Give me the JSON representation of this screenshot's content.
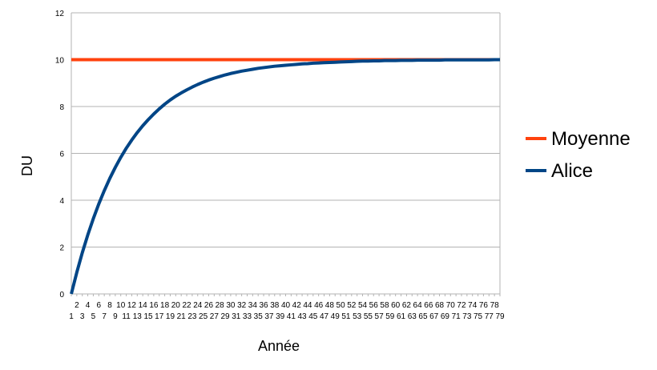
{
  "chart_data": {
    "type": "line",
    "xlabel": "Année",
    "ylabel": "DU",
    "x": [
      1,
      2,
      3,
      4,
      5,
      6,
      7,
      8,
      9,
      10,
      11,
      12,
      13,
      14,
      15,
      16,
      17,
      18,
      19,
      20,
      21,
      22,
      23,
      24,
      25,
      26,
      27,
      28,
      29,
      30,
      31,
      32,
      33,
      34,
      35,
      36,
      37,
      38,
      39,
      40,
      41,
      42,
      43,
      44,
      45,
      46,
      47,
      48,
      49,
      50,
      51,
      52,
      53,
      54,
      55,
      56,
      57,
      58,
      59,
      60,
      61,
      62,
      63,
      64,
      65,
      66,
      67,
      68,
      69,
      70,
      71,
      72,
      73,
      74,
      75,
      76,
      77,
      78,
      79
    ],
    "ylim": [
      0,
      12
    ],
    "yticks": [
      0,
      2,
      4,
      6,
      8,
      10,
      12
    ],
    "grid": true,
    "legend_position": "right",
    "series": [
      {
        "name": "Moyenne",
        "color": "#ff420e",
        "values": [
          10,
          10,
          10,
          10,
          10,
          10,
          10,
          10,
          10,
          10,
          10,
          10,
          10,
          10,
          10,
          10,
          10,
          10,
          10,
          10,
          10,
          10,
          10,
          10,
          10,
          10,
          10,
          10,
          10,
          10,
          10,
          10,
          10,
          10,
          10,
          10,
          10,
          10,
          10,
          10,
          10,
          10,
          10,
          10,
          10,
          10,
          10,
          10,
          10,
          10,
          10,
          10,
          10,
          10,
          10,
          10,
          10,
          10,
          10,
          10,
          10,
          10,
          10,
          10,
          10,
          10,
          10,
          10,
          10,
          10,
          10,
          10,
          10,
          10,
          10,
          10,
          10,
          10,
          10
        ]
      },
      {
        "name": "Alice",
        "color": "#004586",
        "values": [
          0,
          0.92,
          1.76,
          2.52,
          3.21,
          3.84,
          4.41,
          4.93,
          5.4,
          5.83,
          6.22,
          6.57,
          6.89,
          7.18,
          7.44,
          7.68,
          7.9,
          8.1,
          8.28,
          8.44,
          8.58,
          8.71,
          8.83,
          8.94,
          9.04,
          9.13,
          9.21,
          9.28,
          9.35,
          9.41,
          9.46,
          9.51,
          9.55,
          9.59,
          9.63,
          9.66,
          9.69,
          9.72,
          9.74,
          9.76,
          9.78,
          9.8,
          9.82,
          9.83,
          9.85,
          9.86,
          9.87,
          9.88,
          9.89,
          9.9,
          9.91,
          9.92,
          9.93,
          9.94,
          9.94,
          9.95,
          9.95,
          9.96,
          9.96,
          9.96,
          9.97,
          9.97,
          9.97,
          9.98,
          9.98,
          9.98,
          9.98,
          9.98,
          9.99,
          9.99,
          9.99,
          9.99,
          9.99,
          9.99,
          9.99,
          9.99,
          9.99,
          10,
          10
        ]
      }
    ]
  }
}
